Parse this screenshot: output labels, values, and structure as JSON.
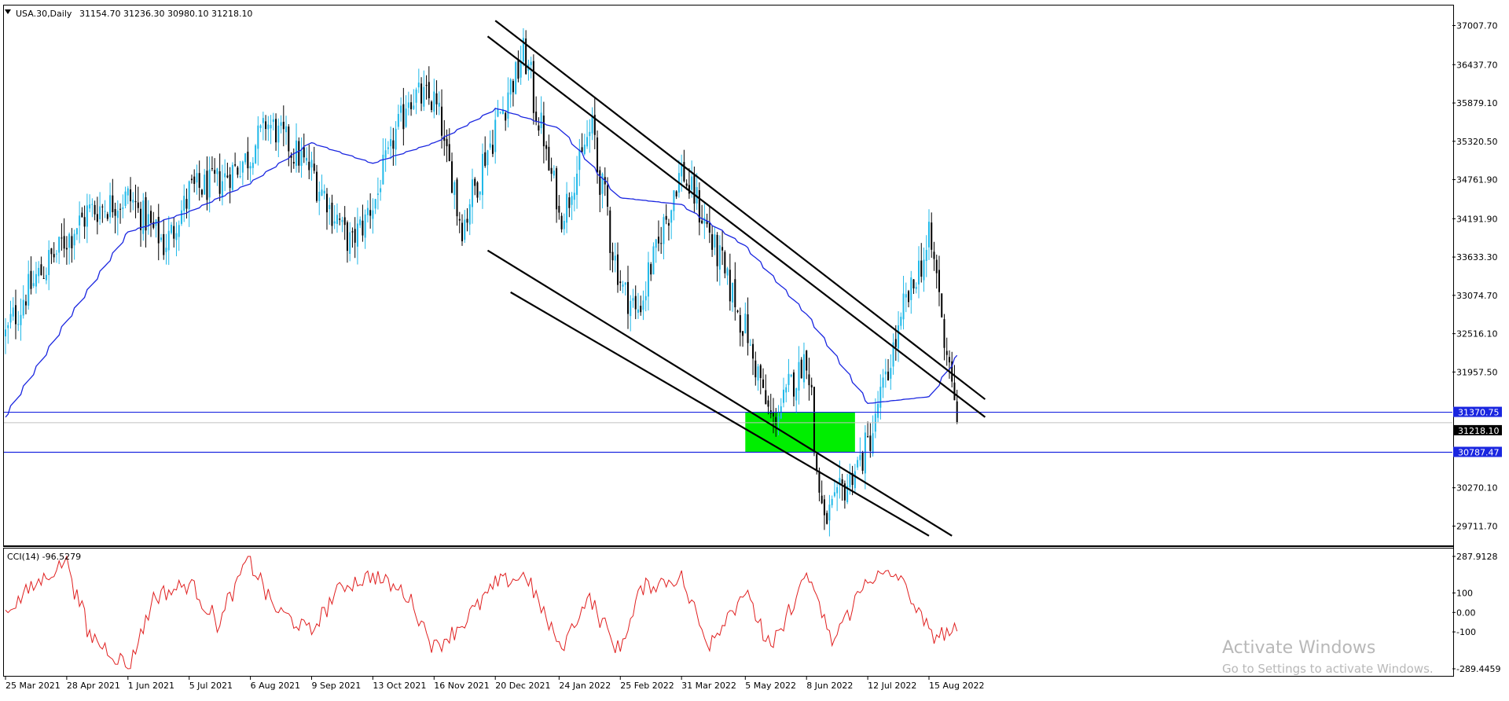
{
  "chart_data": [
    {
      "type": "candlestick",
      "title": "USA.30,Daily",
      "ohlc_header": "31154.70 31236.30 30980.10 31218.10",
      "symbol": "USA.30",
      "timeframe": "Daily",
      "ylim": [
        29430,
        37300
      ],
      "y_ticks": [
        "37007.70",
        "36437.70",
        "35879.10",
        "35320.50",
        "34761.90",
        "34191.90",
        "33633.30",
        "33074.70",
        "32516.10",
        "31957.50",
        "30270.10",
        "29711.70"
      ],
      "x_tick_labels": [
        "25 Mar 2021",
        "28 Apr 2021",
        "1 Jun 2021",
        "5 Jul 2021",
        "6 Aug 2021",
        "9 Sep 2021",
        "13 Oct 2021",
        "16 Nov 2021",
        "20 Dec 2021",
        "24 Jan 2022",
        "25 Feb 2022",
        "31 Mar 2022",
        "5 May 2022",
        "8 Jun 2022",
        "12 Jul 2022",
        "15 Aug 2022"
      ],
      "close_keypoints": {
        "x": [
          "25 Mar 2021",
          "8 Apr 2021",
          "28 Apr 2021",
          "10 May 2021",
          "1 Jun 2021",
          "21 Jun 2021",
          "5 Jul 2021",
          "19 Jul 2021",
          "6 Aug 2021",
          "16 Aug 2021",
          "9 Sep 2021",
          "1 Oct 2021",
          "13 Oct 2021",
          "2 Nov 2021",
          "16 Nov 2021",
          "1 Dec 2021",
          "20 Dec 2021",
          "4 Jan 2022",
          "24 Jan 2022",
          "10 Feb 2022",
          "25 Feb 2022",
          "7 Mar 2022",
          "31 Mar 2022",
          "11 Apr 2022",
          "5 May 2022",
          "20 May 2022",
          "8 Jun 2022",
          "17 Jun 2022",
          "12 Jul 2022",
          "1 Aug 2022",
          "15 Aug 2022",
          "30 Aug 2022"
        ],
        "close": [
          32500,
          33200,
          33900,
          34300,
          34500,
          33800,
          34600,
          34700,
          35100,
          35600,
          34900,
          33800,
          34400,
          36000,
          35900,
          34100,
          35600,
          36600,
          34200,
          35500,
          33300,
          32800,
          34900,
          34300,
          32600,
          31200,
          32200,
          29700,
          30900,
          32900,
          33900,
          31218
        ]
      },
      "moving_average_keypoints": {
        "x": [
          "25 Mar 2021",
          "28 Apr 2021",
          "1 Jun 2021",
          "5 Jul 2021",
          "6 Aug 2021",
          "9 Sep 2021",
          "13 Oct 2021",
          "16 Nov 2021",
          "20 Dec 2021",
          "24 Jan 2022",
          "25 Feb 2022",
          "31 Mar 2022",
          "5 May 2022",
          "8 Jun 2022",
          "12 Jul 2022",
          "15 Aug 2022",
          "30 Aug 2022"
        ],
        "value": [
          31300,
          32700,
          34000,
          34300,
          34700,
          35300,
          35000,
          35300,
          35800,
          35500,
          34500,
          34400,
          33800,
          32800,
          31500,
          31600,
          32200
        ]
      },
      "horizontal_levels": [
        {
          "name": "upper-level",
          "value": 31370.75,
          "label": "31370.75"
        },
        {
          "name": "lower-level",
          "value": 30787.47,
          "label": "30787.47"
        }
      ],
      "last_price_label": "31218.10",
      "trendlines": [
        {
          "name": "upper-channel-top",
          "from": [
            "20 Dec 2021",
            37080
          ],
          "to": [
            "14 Sep 2022",
            31560
          ]
        },
        {
          "name": "upper-channel-bottom",
          "from": [
            "15 Dec 2021",
            36850
          ],
          "to": [
            "14 Sep 2022",
            31300
          ]
        },
        {
          "name": "lower-channel-top",
          "from": [
            "15 Dec 2021",
            33730
          ],
          "to": [
            "27 Aug 2022",
            29570
          ]
        },
        {
          "name": "lower-channel-bottom",
          "from": [
            "28 Dec 2021",
            33120
          ],
          "to": [
            "15 Aug 2022",
            29570
          ]
        }
      ],
      "highlight_zone": {
        "from": "5 May 2022",
        "to": "5 Jul 2022",
        "top": 31370.75,
        "bottom": 30787.47
      }
    },
    {
      "type": "line",
      "title": "CCI(14) -96.5279",
      "ylim": [
        -289.4459,
        287.9128
      ],
      "y_ticks": [
        "287.9128",
        "100",
        "0.00",
        "-100",
        "-289.4459"
      ],
      "x_keypoints": [
        "25 Mar 2021",
        "8 Apr 2021",
        "28 Apr 2021",
        "10 May 2021",
        "1 Jun 2021",
        "15 Jun 2021",
        "5 Jul 2021",
        "20 Jul 2021",
        "6 Aug 2021",
        "20 Aug 2021",
        "9 Sep 2021",
        "25 Sep 2021",
        "13 Oct 2021",
        "1 Nov 2021",
        "16 Nov 2021",
        "1 Dec 2021",
        "20 Dec 2021",
        "5 Jan 2022",
        "24 Jan 2022",
        "8 Feb 2022",
        "25 Feb 2022",
        "10 Mar 2022",
        "31 Mar 2022",
        "15 Apr 2022",
        "5 May 2022",
        "20 May 2022",
        "8 Jun 2022",
        "22 Jun 2022",
        "12 Jul 2022",
        "29 Jul 2022",
        "15 Aug 2022",
        "30 Aug 2022"
      ],
      "values": [
        0,
        120,
        270,
        -110,
        -280,
        80,
        150,
        -60,
        280,
        20,
        -100,
        130,
        190,
        90,
        -180,
        -60,
        150,
        190,
        -190,
        80,
        -200,
        130,
        180,
        -160,
        110,
        -200,
        200,
        -150,
        180,
        190,
        -120,
        -96.5279
      ]
    }
  ],
  "watermark": {
    "title": "Activate Windows",
    "subtitle": "Go to Settings to activate Windows."
  },
  "colors": {
    "bull_candle": "#1fb8e8",
    "bear_candle": "#000000",
    "moving_average": "#1a26e0",
    "level_line": "#1a26e0",
    "highlight_zone": "#00ee00",
    "cci_line": "#e02020",
    "price_tag": "#1a26e0",
    "last_price_tag": "#000000"
  }
}
